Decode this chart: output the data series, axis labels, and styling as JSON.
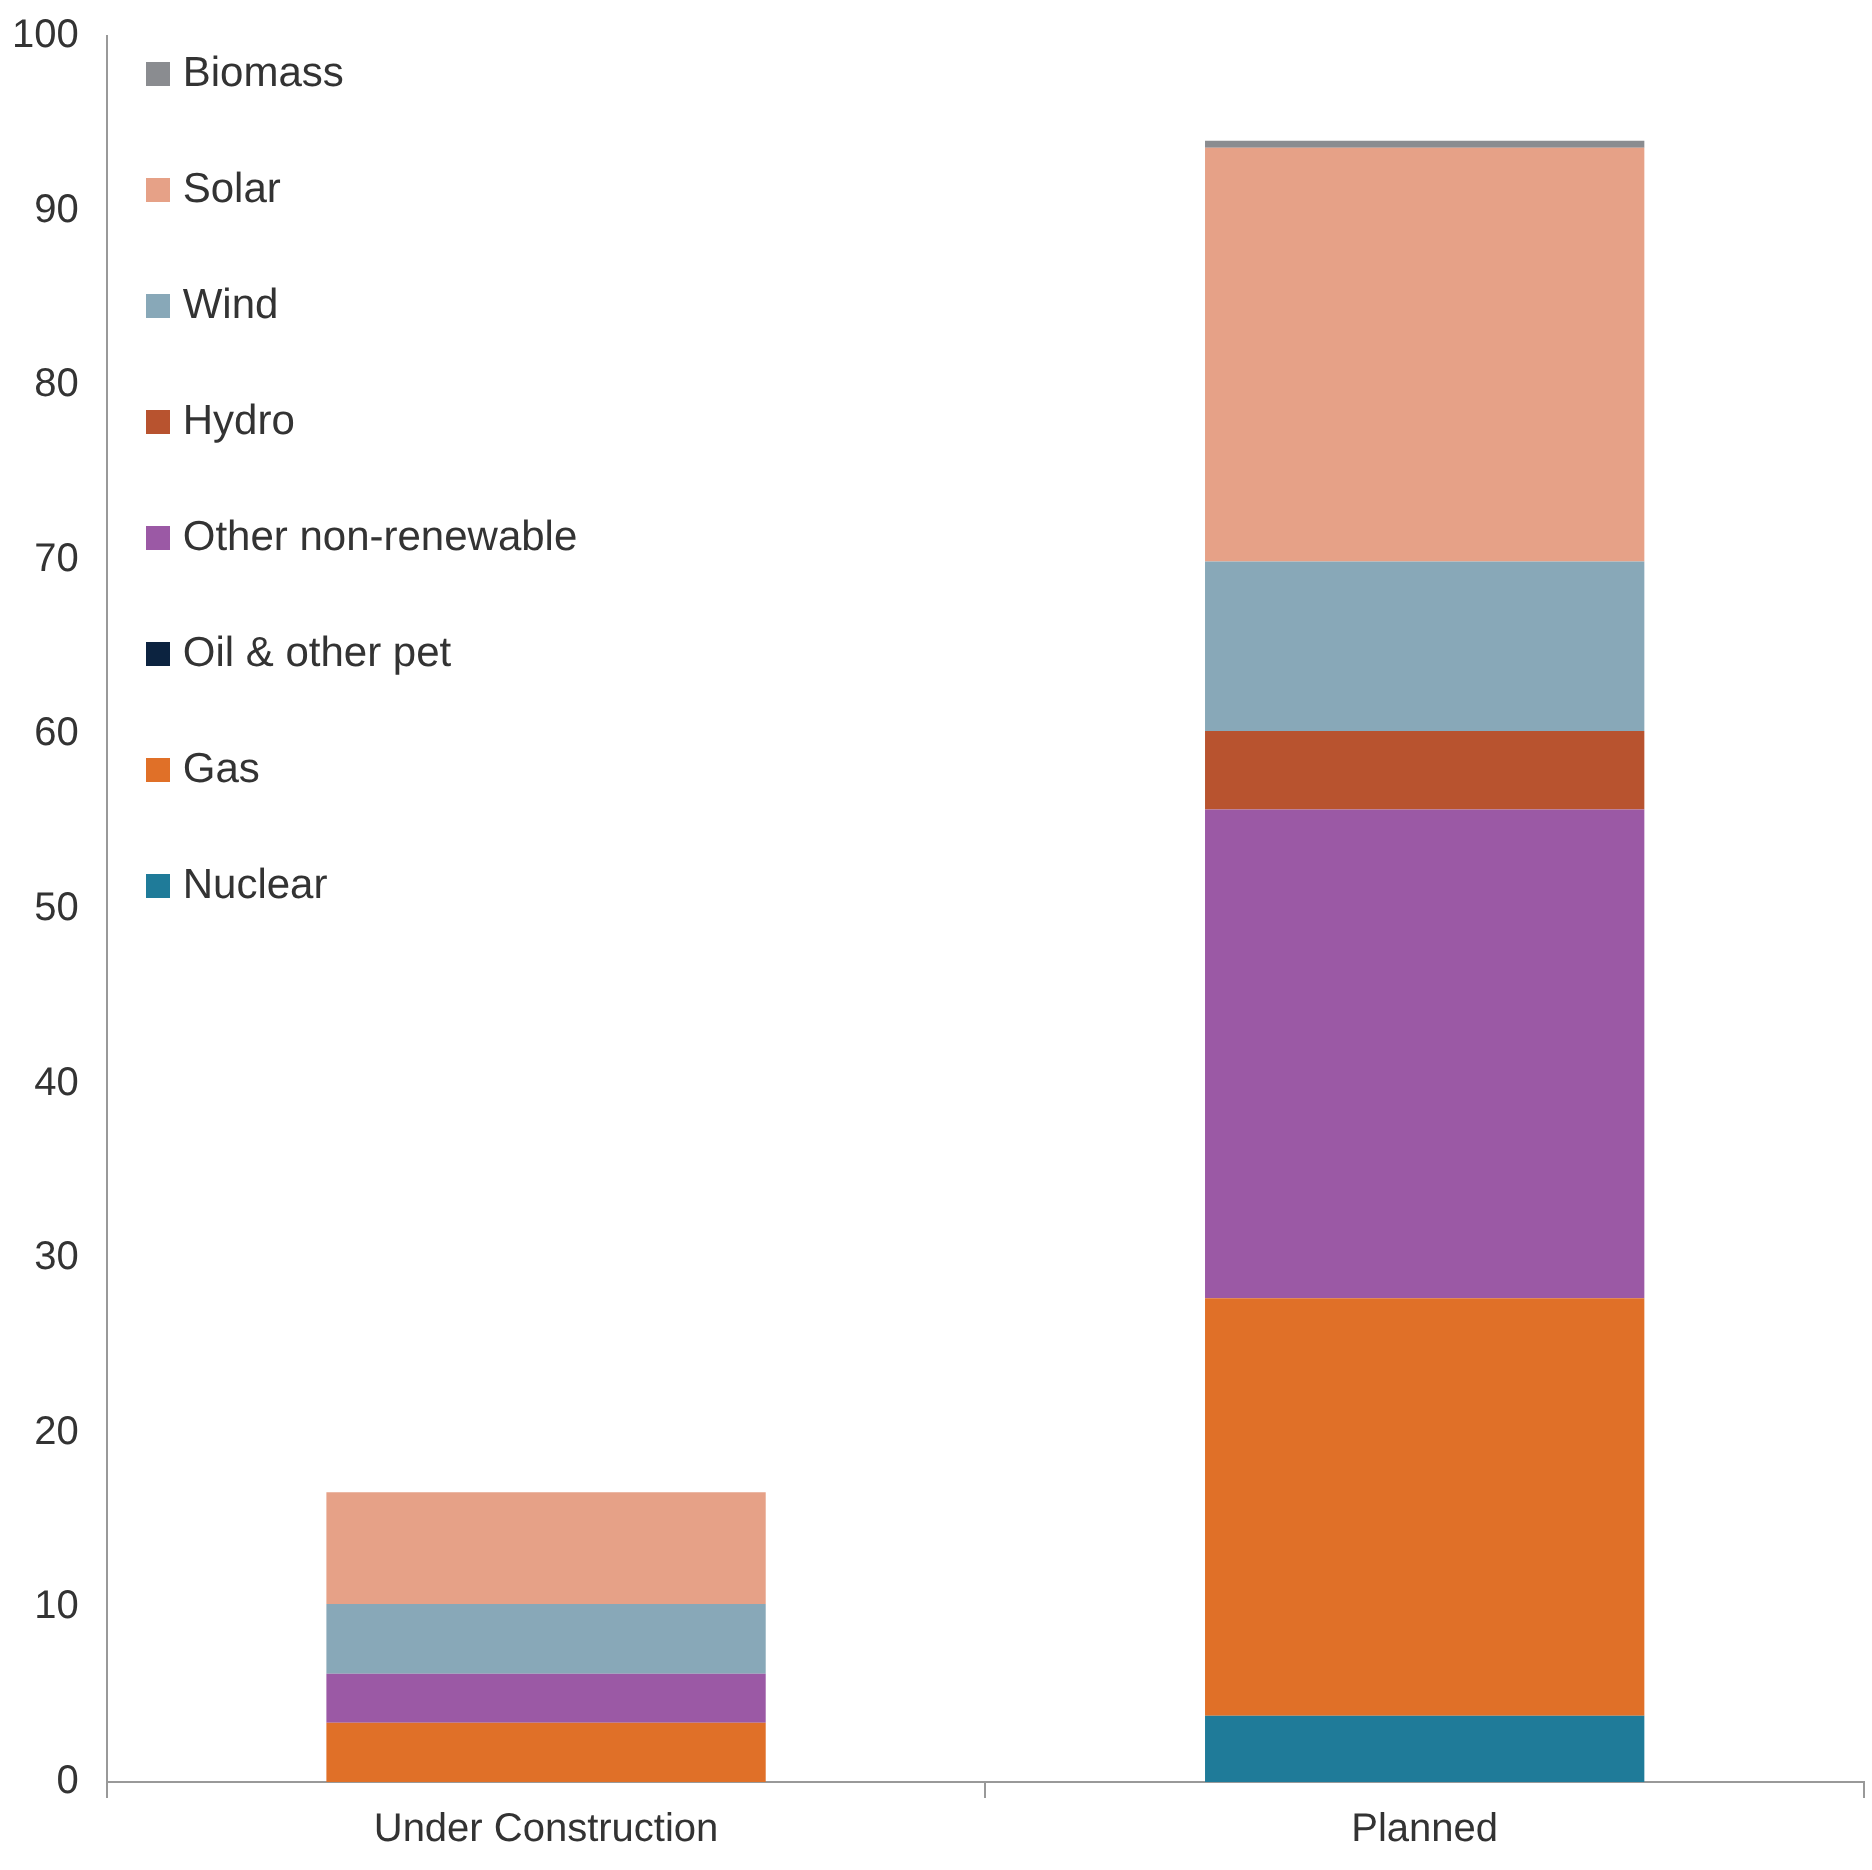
{
  "chart_data": {
    "type": "bar",
    "stacked": true,
    "categories": [
      "Under Construction",
      "Planned"
    ],
    "series": [
      {
        "name": "Nuclear",
        "color": "#1f7b99",
        "values": [
          0,
          3.8
        ]
      },
      {
        "name": "Gas",
        "color": "#e07028",
        "values": [
          3.4,
          23.9
        ]
      },
      {
        "name": "Oil & other pet",
        "color": "#0c2340",
        "values": [
          0,
          0
        ]
      },
      {
        "name": "Other non-renewable",
        "color": "#9b59a5",
        "values": [
          2.8,
          28.0
        ]
      },
      {
        "name": "Hydro",
        "color": "#b8532f",
        "values": [
          0,
          4.5
        ]
      },
      {
        "name": "Wind",
        "color": "#88a8b8",
        "values": [
          4.0,
          9.7
        ]
      },
      {
        "name": "Solar",
        "color": "#e6a187",
        "values": [
          6.4,
          23.7
        ]
      },
      {
        "name": "Biomass",
        "color": "#8a8c90",
        "values": [
          0,
          0.4
        ]
      }
    ],
    "ylim": [
      0,
      100
    ],
    "yticks": [
      0,
      10,
      20,
      30,
      40,
      50,
      60,
      70,
      80,
      90,
      100
    ],
    "grid": false,
    "legend": "top left"
  }
}
